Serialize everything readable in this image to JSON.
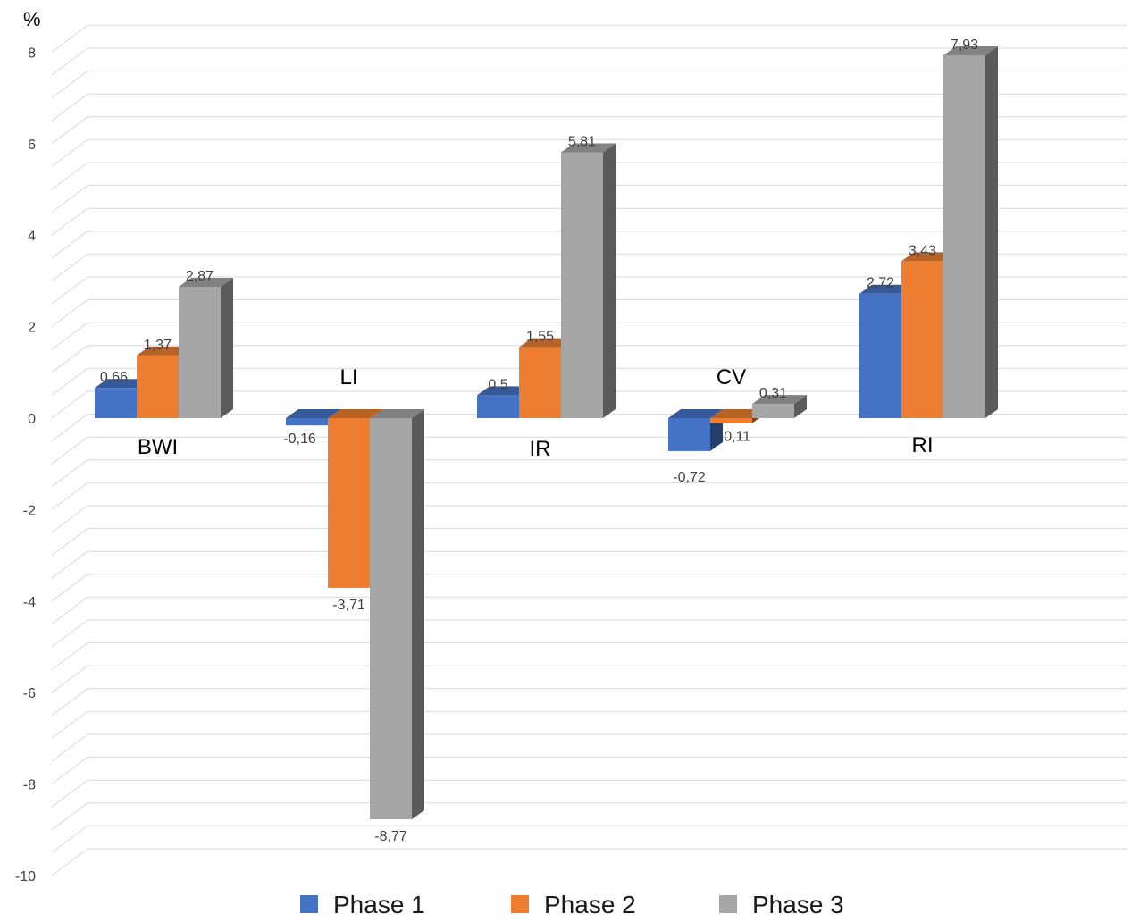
{
  "chart_data": {
    "type": "bar",
    "title": "",
    "ylabel": "%",
    "xlabel": "",
    "categories": [
      "BWI",
      "LI",
      "IR",
      "CV",
      "RI"
    ],
    "series": [
      {
        "name": "Phase 1",
        "color": "#4472C4",
        "values": [
          0.66,
          -0.16,
          0.5,
          -0.72,
          2.72
        ],
        "labels": [
          "0,66",
          "-0,16",
          "0,5",
          "-0,72",
          "2,72"
        ]
      },
      {
        "name": "Phase 2",
        "color": "#ED7D31",
        "values": [
          1.37,
          -3.71,
          1.55,
          -0.11,
          3.43
        ],
        "labels": [
          "1,37",
          "-3,71",
          "1,55",
          "-0,11",
          "3,43"
        ]
      },
      {
        "name": "Phase 3",
        "color": "#A5A5A5",
        "values": [
          2.87,
          -8.77,
          5.81,
          0.31,
          7.93
        ],
        "labels": [
          "2,87",
          "-8,77",
          "5,81",
          "0,31",
          "7,93"
        ]
      }
    ],
    "yticks": [
      8,
      6,
      4,
      2,
      0,
      -2,
      -4,
      -6,
      -8,
      -10
    ],
    "ylim": [
      -10,
      8
    ],
    "grid": true,
    "legend": "bottom",
    "style": "3d-column"
  }
}
